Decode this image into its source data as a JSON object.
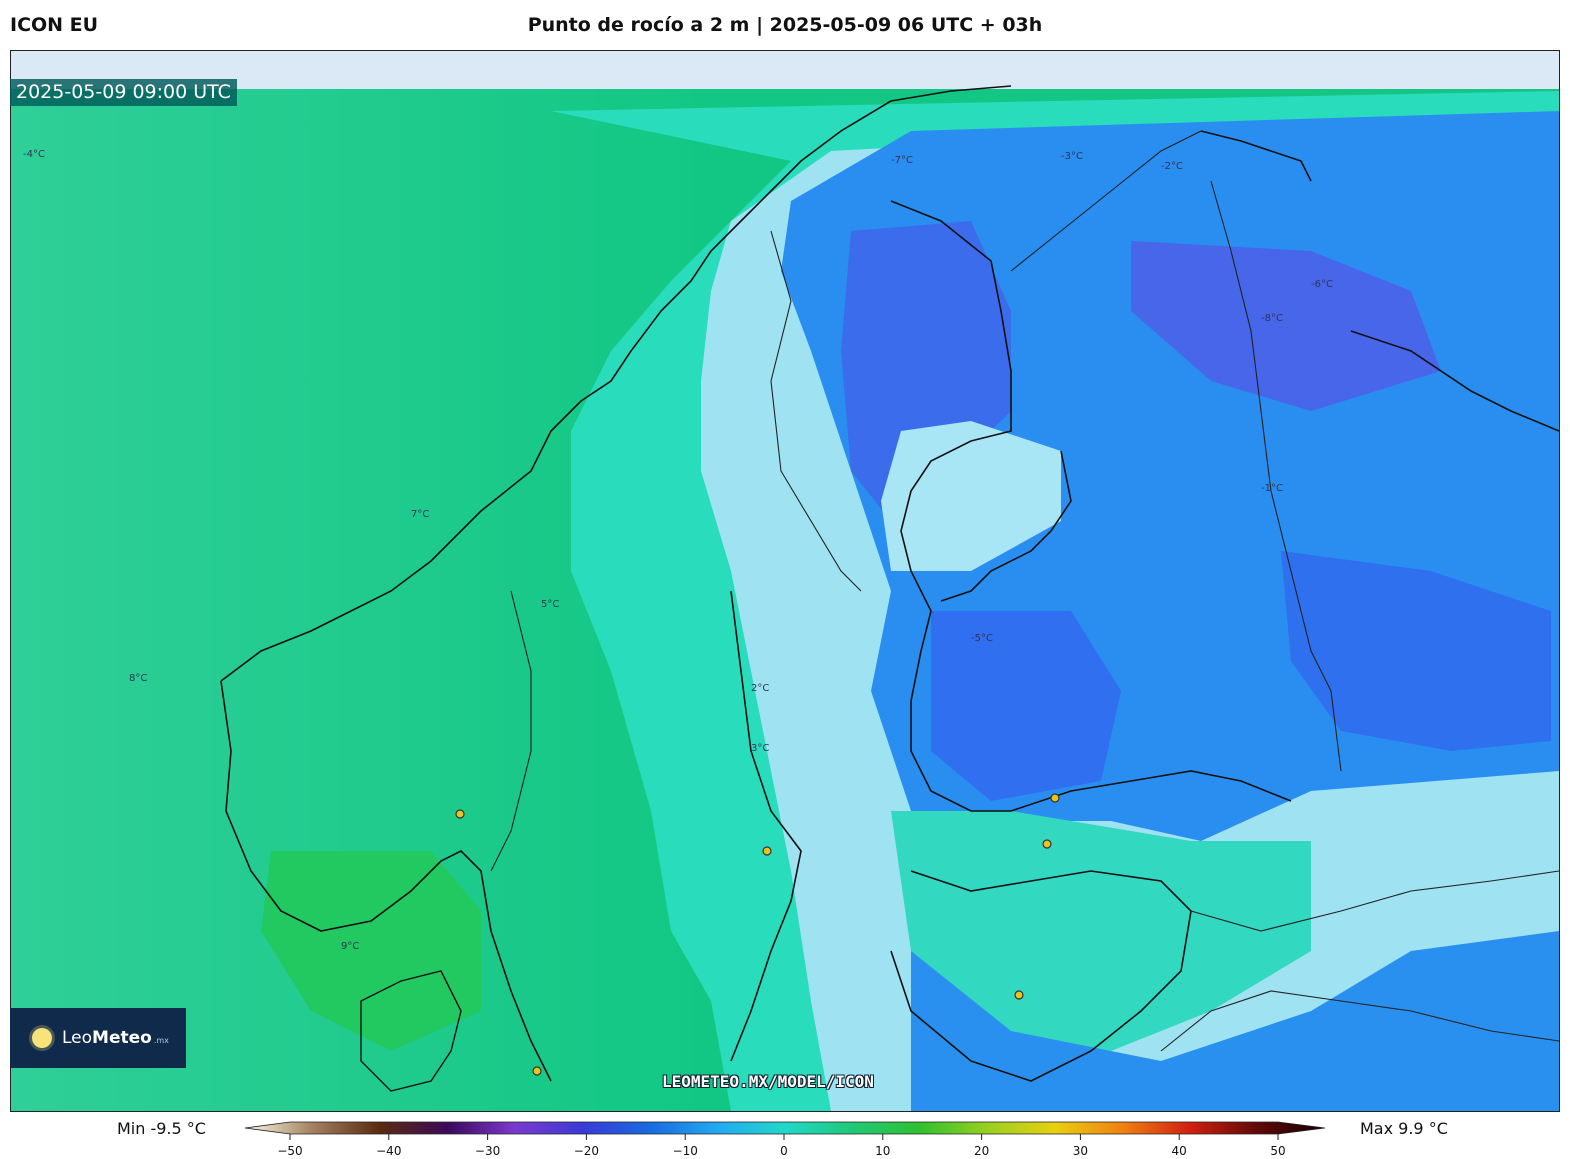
{
  "header": {
    "model": "ICON EU",
    "title": "Punto de rocío a 2 m | 2025-05-09 06 UTC + 03h"
  },
  "map": {
    "valid_time": "2025-05-09 09:00 UTC",
    "watermark": "LEOMETEO.MX/MODEL/ICON",
    "logo": {
      "prefix": "Leo",
      "bold": "Meteo",
      "suffix": ".mx"
    }
  },
  "legend": {
    "min_label": "Min -9.5 °C",
    "max_label": "Max 9.9 °C",
    "ticks": [
      "−50",
      "−40",
      "−30",
      "−20",
      "−10",
      "0",
      "10",
      "20",
      "30",
      "40",
      "50"
    ],
    "range": [
      -50,
      50
    ],
    "colors": [
      "#fff8e6",
      "#a08060",
      "#5a2a10",
      "#3a0a5a",
      "#7a3ad0",
      "#3a3ad8",
      "#1a6ae0",
      "#22aaf0",
      "#22d8c8",
      "#20c878",
      "#30c030",
      "#9ad020",
      "#e8d010",
      "#f08010",
      "#d02010",
      "#600808",
      "#100000"
    ]
  },
  "contour_labels": [
    {
      "text": "-4°C"
    },
    {
      "text": "-6°C"
    },
    {
      "text": "-7°C"
    },
    {
      "text": "-5°C"
    },
    {
      "text": "-3°C"
    },
    {
      "text": "-8°C"
    },
    {
      "text": "-2°C"
    },
    {
      "text": "-1°C"
    },
    {
      "text": "2°C"
    },
    {
      "text": "3°C"
    },
    {
      "text": "5°C"
    },
    {
      "text": "7°C"
    },
    {
      "text": "8°C"
    },
    {
      "text": "9°C"
    }
  ]
}
